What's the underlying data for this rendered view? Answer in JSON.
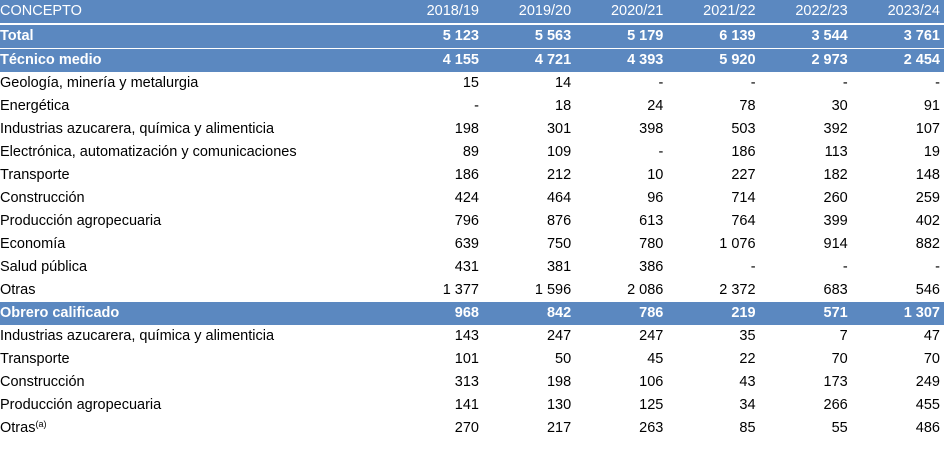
{
  "header": {
    "concept": "CONCEPTO",
    "years": [
      "2018/19",
      "2019/20",
      "2020/21",
      "2021/22",
      "2022/23",
      "2023/24"
    ]
  },
  "rows": [
    {
      "type": "total",
      "label": "Total",
      "values": [
        "5 123",
        "5 563",
        "5 179",
        "6 139",
        "3 544",
        "3 761"
      ]
    },
    {
      "type": "group",
      "label": "Técnico medio",
      "values": [
        "4 155",
        "4 721",
        "4 393",
        "5 920",
        "2 973",
        "2 454"
      ]
    },
    {
      "type": "item",
      "label": "Geología, minería y metalurgia",
      "values": [
        "15",
        "14",
        "-",
        "-",
        "-",
        "-"
      ]
    },
    {
      "type": "item",
      "label": "Energética",
      "values": [
        "-",
        "18",
        "24",
        "78",
        "30",
        "91"
      ]
    },
    {
      "type": "item",
      "label": "Industrias azucarera, química y alimenticia",
      "values": [
        "198",
        "301",
        "398",
        "503",
        "392",
        "107"
      ]
    },
    {
      "type": "item",
      "label": "Electrónica, automatización y comunicaciones",
      "values": [
        "89",
        "109",
        "-",
        "186",
        "113",
        "19"
      ]
    },
    {
      "type": "item",
      "label": "Transporte",
      "values": [
        "186",
        "212",
        "10",
        "227",
        "182",
        "148"
      ]
    },
    {
      "type": "item",
      "label": "Construcción",
      "values": [
        "424",
        "464",
        "96",
        "714",
        "260",
        "259"
      ]
    },
    {
      "type": "item",
      "label": "Producción agropecuaria",
      "values": [
        "796",
        "876",
        "613",
        "764",
        "399",
        "402"
      ]
    },
    {
      "type": "item",
      "label": "Economía",
      "values": [
        "639",
        "750",
        "780",
        "1 076",
        "914",
        "882"
      ]
    },
    {
      "type": "item",
      "label": "Salud pública",
      "values": [
        "431",
        "381",
        "386",
        "-",
        "-",
        "-"
      ]
    },
    {
      "type": "item",
      "label": "Otras",
      "values": [
        "1 377",
        "1 596",
        "2 086",
        "2 372",
        "683",
        "546"
      ]
    },
    {
      "type": "group",
      "label": "Obrero calificado",
      "values": [
        "968",
        "842",
        "786",
        "219",
        "571",
        "1 307"
      ]
    },
    {
      "type": "item",
      "label": "Industrias azucarera, química y alimenticia",
      "values": [
        "143",
        "247",
        "247",
        "35",
        "7",
        "47"
      ]
    },
    {
      "type": "item",
      "label": "Transporte",
      "values": [
        "101",
        "50",
        "45",
        "22",
        "70",
        "70"
      ]
    },
    {
      "type": "item",
      "label": "Construcción",
      "values": [
        "313",
        "198",
        "106",
        "43",
        "173",
        "249"
      ]
    },
    {
      "type": "item",
      "label": "Producción agropecuaria",
      "values": [
        "141",
        "130",
        "125",
        "34",
        "266",
        "455"
      ]
    },
    {
      "type": "item",
      "label": "Otras",
      "note": "(a)",
      "values": [
        "270",
        "217",
        "263",
        "85",
        "55",
        "486"
      ]
    }
  ],
  "colors": {
    "header_bg": "#5b88c0",
    "header_text": "#ffffff"
  }
}
